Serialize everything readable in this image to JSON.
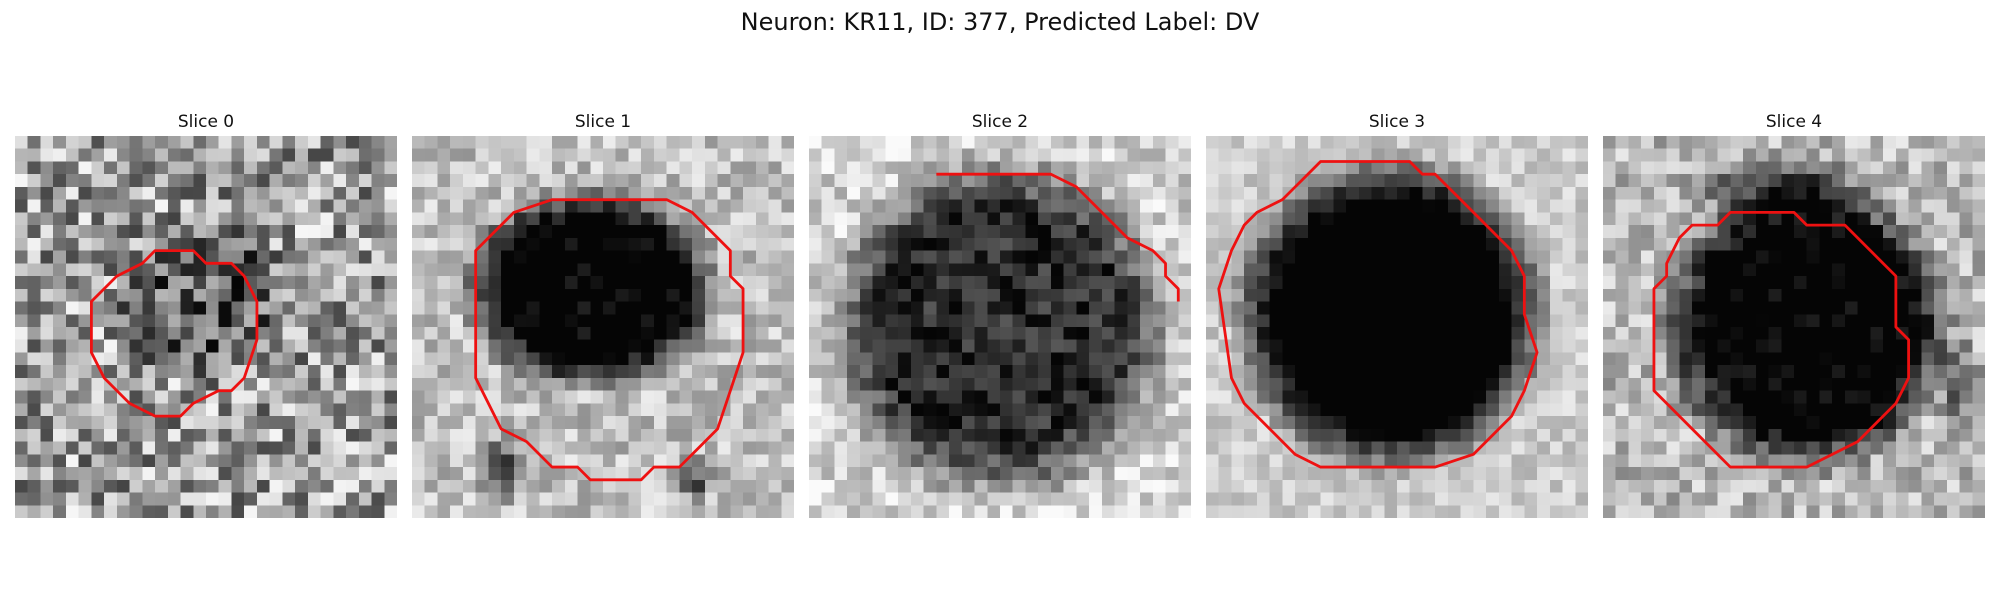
{
  "figure": {
    "title": "Neuron: KR11, ID: 377, Predicted Label: DV"
  },
  "panels": [
    {
      "title": "Slice 0"
    },
    {
      "title": "Slice 1"
    },
    {
      "title": "Slice 2"
    },
    {
      "title": "Slice 3"
    },
    {
      "title": "Slice 4"
    }
  ],
  "colors": {
    "contour": "#ee1111",
    "background": "#ffffff"
  }
}
